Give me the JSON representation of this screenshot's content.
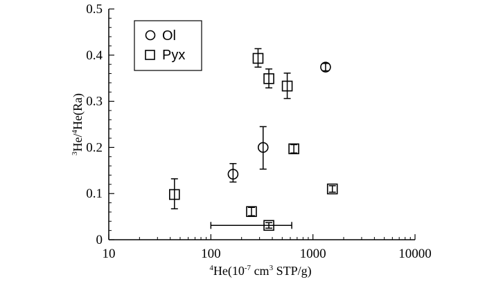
{
  "chart_data": {
    "type": "scatter",
    "xscale": "log",
    "xlim": [
      10,
      10000
    ],
    "ylim": [
      0,
      0.5
    ],
    "xticks": [
      "10",
      "100",
      "1000",
      "10000"
    ],
    "yticks": [
      "0",
      "0.1",
      "0.2",
      "0.3",
      "0.4",
      "0.5"
    ],
    "xlabel": {
      "sup1": "4",
      "main": "He(10",
      "sup2": "-7",
      "mid": " cm",
      "sup3": "3",
      "tail": " STP/g)"
    },
    "ylabel": {
      "sup1": "3",
      "mid": "He/",
      "sup2": "4",
      "tail": "He(Ra)"
    },
    "grid": false,
    "legend_position": "top-left",
    "colors": {
      "marker": "#000000",
      "axis": "#000000",
      "background": "#ffffff"
    },
    "series": [
      {
        "name": "Ol",
        "marker": "circle",
        "points": [
          {
            "x": 165,
            "y": 0.142,
            "yerr": [
              0.125,
              0.165
            ]
          },
          {
            "x": 325,
            "y": 0.2,
            "yerr": [
              0.153,
              0.245
            ]
          },
          {
            "x": 1330,
            "y": 0.374,
            "yerr": [
              0.366,
              0.382
            ]
          }
        ]
      },
      {
        "name": "Pyx",
        "marker": "square",
        "points": [
          {
            "x": 44,
            "y": 0.098,
            "yerr": [
              0.067,
              0.132
            ]
          },
          {
            "x": 250,
            "y": 0.061,
            "yerr": [
              0.052,
              0.07
            ]
          },
          {
            "x": 290,
            "y": 0.393,
            "yerr": [
              0.374,
              0.414
            ]
          },
          {
            "x": 370,
            "y": 0.349,
            "yerr": [
              0.329,
              0.37
            ]
          },
          {
            "x": 370,
            "y": 0.031,
            "yerr": [
              0.025,
              0.037
            ],
            "xerr": [
              100,
              620
            ]
          },
          {
            "x": 560,
            "y": 0.333,
            "yerr": [
              0.306,
              0.361
            ]
          },
          {
            "x": 650,
            "y": 0.197,
            "yerr": [
              0.188,
              0.206
            ]
          },
          {
            "x": 1550,
            "y": 0.11,
            "yerr": [
              0.103,
              0.117
            ]
          }
        ]
      }
    ]
  }
}
